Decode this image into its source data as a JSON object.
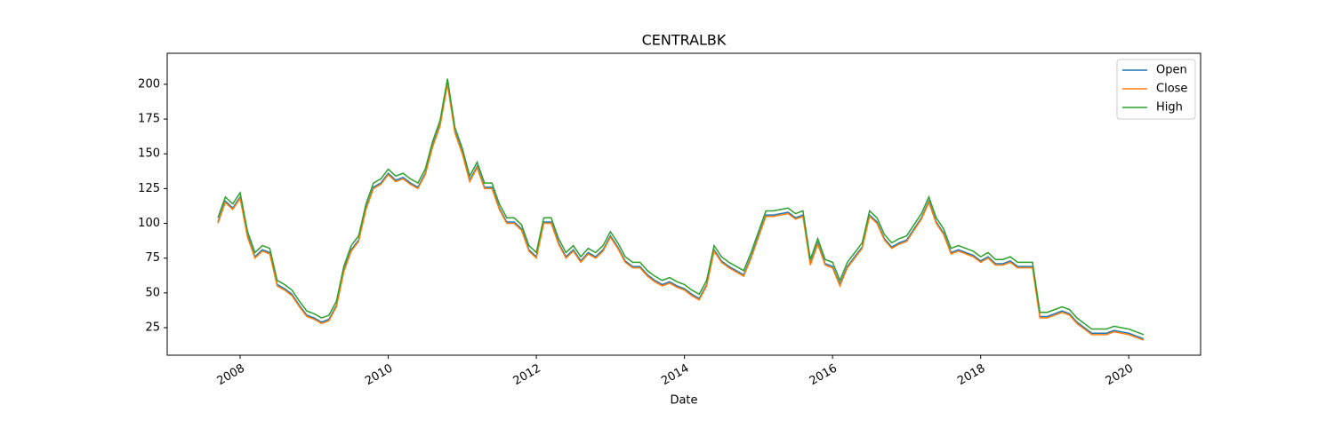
{
  "chart_data": {
    "type": "line",
    "title": "CENTRALBK",
    "x_label": "Date",
    "x": [
      2007.7,
      2007.8,
      2007.9,
      2008.0,
      2008.1,
      2008.2,
      2008.3,
      2008.4,
      2008.5,
      2008.6,
      2008.7,
      2008.8,
      2008.9,
      2009.0,
      2009.1,
      2009.2,
      2009.3,
      2009.4,
      2009.5,
      2009.6,
      2009.7,
      2009.8,
      2009.9,
      2010.0,
      2010.1,
      2010.2,
      2010.3,
      2010.4,
      2010.5,
      2010.6,
      2010.7,
      2010.8,
      2010.9,
      2011.0,
      2011.1,
      2011.2,
      2011.3,
      2011.4,
      2011.5,
      2011.6,
      2011.7,
      2011.8,
      2011.9,
      2012.0,
      2012.1,
      2012.2,
      2012.3,
      2012.4,
      2012.5,
      2012.6,
      2012.7,
      2012.8,
      2012.9,
      2013.0,
      2013.1,
      2013.2,
      2013.3,
      2013.4,
      2013.5,
      2013.6,
      2013.7,
      2013.8,
      2013.9,
      2014.0,
      2014.1,
      2014.2,
      2014.3,
      2014.4,
      2014.5,
      2014.6,
      2014.7,
      2014.8,
      2014.9,
      2015.0,
      2015.1,
      2015.2,
      2015.3,
      2015.4,
      2015.5,
      2015.6,
      2015.7,
      2015.8,
      2015.9,
      2016.0,
      2016.1,
      2016.2,
      2016.3,
      2016.4,
      2016.5,
      2016.6,
      2016.7,
      2016.8,
      2016.9,
      2017.0,
      2017.1,
      2017.2,
      2017.3,
      2017.4,
      2017.5,
      2017.6,
      2017.7,
      2017.8,
      2017.9,
      2018.0,
      2018.1,
      2018.2,
      2018.3,
      2018.4,
      2018.5,
      2018.6,
      2018.7,
      2018.8,
      2018.9,
      2019.0,
      2019.1,
      2019.2,
      2019.3,
      2019.4,
      2019.5,
      2019.6,
      2019.7,
      2019.8,
      2019.9,
      2020.0,
      2020.1,
      2020.2
    ],
    "series": [
      {
        "name": "Open",
        "color": "#1f77b4",
        "values": [
          101,
          116,
          111,
          119,
          91,
          76,
          81,
          79,
          56,
          53,
          49,
          41,
          34,
          32,
          29,
          31,
          41,
          66,
          81,
          88,
          111,
          126,
          129,
          136,
          131,
          133,
          129,
          126,
          136,
          156,
          171,
          201,
          166,
          151,
          131,
          141,
          126,
          126,
          111,
          101,
          101,
          96,
          81,
          76,
          101,
          101,
          86,
          76,
          81,
          73,
          79,
          76,
          81,
          91,
          83,
          73,
          69,
          69,
          63,
          59,
          56,
          58,
          55,
          53,
          49,
          46,
          56,
          81,
          73,
          69,
          66,
          63,
          76,
          91,
          106,
          106,
          107,
          108,
          104,
          106,
          71,
          86,
          71,
          69,
          56,
          69,
          76,
          83,
          106,
          101,
          89,
          83,
          86,
          88,
          96,
          104,
          116,
          101,
          93,
          79,
          81,
          79,
          77,
          73,
          76,
          71,
          71,
          73,
          69,
          69,
          69,
          33,
          33,
          35,
          37,
          35,
          29,
          25,
          21,
          21,
          21,
          23,
          22,
          21,
          19,
          17
        ]
      },
      {
        "name": "Close",
        "color": "#ff7f0e",
        "values": [
          100,
          115,
          110,
          118,
          90,
          75,
          80,
          78,
          55,
          52,
          48,
          40,
          33,
          31,
          28,
          30,
          40,
          65,
          80,
          87,
          110,
          125,
          128,
          135,
          130,
          132,
          128,
          125,
          135,
          155,
          170,
          200,
          165,
          150,
          130,
          140,
          125,
          125,
          110,
          100,
          100,
          95,
          80,
          75,
          100,
          100,
          85,
          75,
          80,
          72,
          78,
          75,
          80,
          90,
          82,
          72,
          68,
          68,
          62,
          58,
          55,
          57,
          54,
          52,
          48,
          45,
          55,
          80,
          72,
          68,
          65,
          62,
          75,
          90,
          105,
          105,
          106,
          107,
          103,
          105,
          70,
          85,
          70,
          68,
          55,
          68,
          75,
          82,
          105,
          100,
          88,
          82,
          85,
          87,
          95,
          103,
          115,
          100,
          92,
          78,
          80,
          78,
          76,
          72,
          75,
          70,
          70,
          72,
          68,
          68,
          68,
          32,
          32,
          34,
          36,
          34,
          28,
          24,
          20,
          20,
          20,
          22,
          21,
          20,
          18,
          16
        ]
      },
      {
        "name": "High",
        "color": "#2ca02c",
        "values": [
          104,
          119,
          114,
          122,
          94,
          79,
          84,
          82,
          59,
          56,
          52,
          44,
          37,
          35,
          32,
          34,
          44,
          69,
          84,
          91,
          114,
          129,
          132,
          139,
          134,
          136,
          132,
          129,
          139,
          159,
          174,
          204,
          169,
          154,
          134,
          144,
          129,
          129,
          114,
          104,
          104,
          99,
          84,
          79,
          104,
          104,
          89,
          79,
          84,
          76,
          82,
          79,
          84,
          94,
          86,
          76,
          72,
          72,
          66,
          62,
          59,
          61,
          58,
          56,
          52,
          49,
          59,
          84,
          76,
          72,
          69,
          66,
          79,
          94,
          109,
          109,
          110,
          111,
          107,
          109,
          74,
          89,
          74,
          72,
          59,
          72,
          79,
          86,
          109,
          104,
          92,
          86,
          89,
          91,
          99,
          107,
          119,
          104,
          96,
          82,
          84,
          82,
          80,
          76,
          79,
          74,
          74,
          76,
          72,
          72,
          72,
          36,
          36,
          38,
          40,
          38,
          32,
          28,
          24,
          24,
          24,
          26,
          25,
          24,
          22,
          20
        ]
      }
    ],
    "xlim": [
      2007.015,
      2020.97
    ],
    "xticks": [
      2008,
      2010,
      2012,
      2014,
      2016,
      2018,
      2020
    ],
    "ylim": [
      5.2,
      222.3
    ],
    "yticks": [
      25,
      50,
      75,
      100,
      125,
      150,
      175,
      200
    ],
    "legend": "upper right"
  }
}
